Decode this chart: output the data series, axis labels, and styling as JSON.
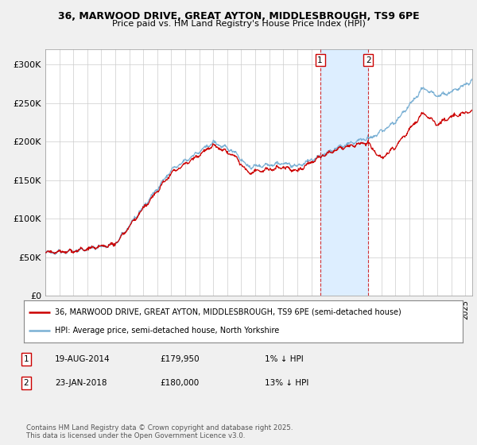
{
  "title_line1": "36, MARWOOD DRIVE, GREAT AYTON, MIDDLESBROUGH, TS9 6PE",
  "title_line2": "Price paid vs. HM Land Registry's House Price Index (HPI)",
  "background_color": "#f0f0f0",
  "plot_bg_color": "#ffffff",
  "legend_label_red": "36, MARWOOD DRIVE, GREAT AYTON, MIDDLESBROUGH, TS9 6PE (semi-detached house)",
  "legend_label_blue": "HPI: Average price, semi-detached house, North Yorkshire",
  "annotation1_date": "19-AUG-2014",
  "annotation1_price": "£179,950",
  "annotation1_hpi": "1% ↓ HPI",
  "annotation2_date": "23-JAN-2018",
  "annotation2_price": "£180,000",
  "annotation2_hpi": "13% ↓ HPI",
  "footer": "Contains HM Land Registry data © Crown copyright and database right 2025.\nThis data is licensed under the Open Government Licence v3.0.",
  "ylim": [
    0,
    320000
  ],
  "yticks": [
    0,
    50000,
    100000,
    150000,
    200000,
    250000,
    300000
  ],
  "ytick_labels": [
    "£0",
    "£50K",
    "£100K",
    "£150K",
    "£200K",
    "£250K",
    "£300K"
  ],
  "sale1_x": 2014.63,
  "sale1_y": 179950,
  "sale2_x": 2018.07,
  "sale2_y": 180000,
  "xmin": 1995,
  "xmax": 2025.5,
  "shaded_color": "#ddeeff",
  "line_red": "#cc0000",
  "line_blue": "#7ab0d4"
}
